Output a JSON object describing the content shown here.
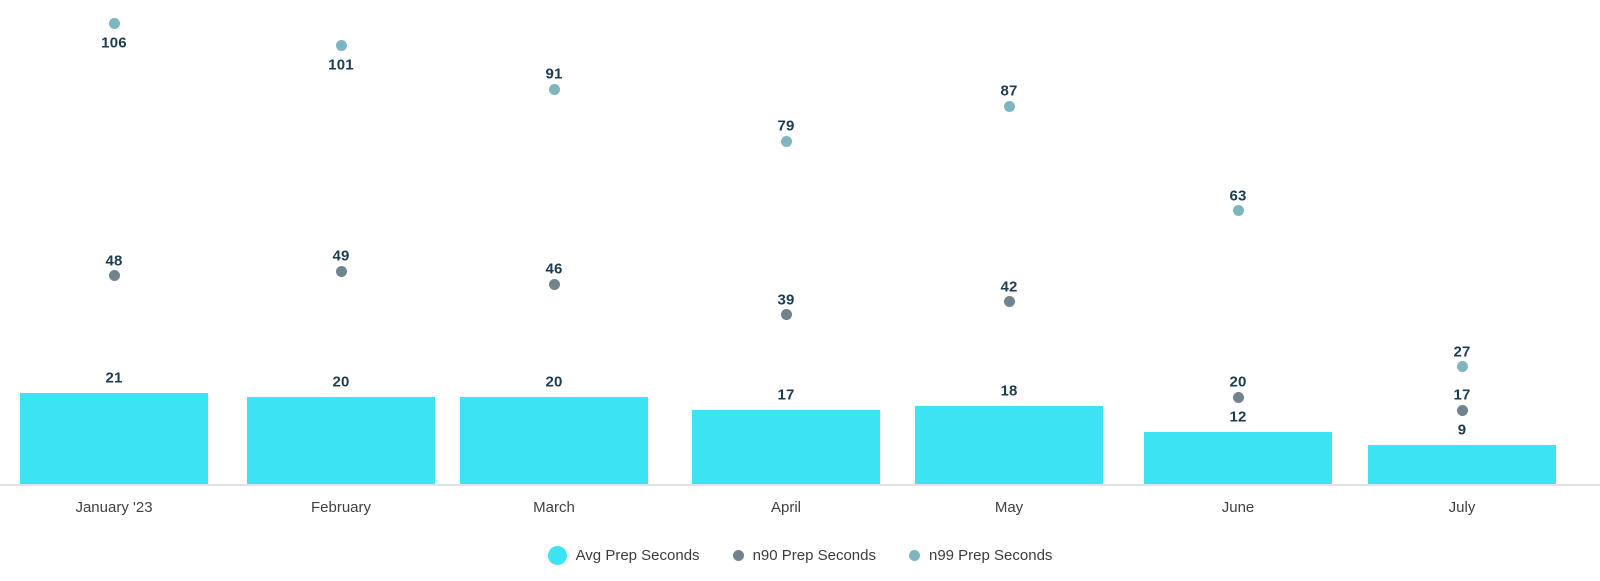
{
  "chart_data": {
    "type": "bar",
    "categories": [
      "January '23",
      "February",
      "March",
      "April",
      "May",
      "June",
      "July"
    ],
    "series": [
      {
        "name": "Avg Prep Seconds",
        "kind": "bar",
        "color": "#3CE3F3",
        "values": [
          21,
          20,
          20,
          17,
          18,
          12,
          9
        ]
      },
      {
        "name": "n90 Prep Seconds",
        "kind": "scatter",
        "color": "#70838F",
        "values": [
          48,
          49,
          46,
          39,
          42,
          20,
          17
        ]
      },
      {
        "name": "n99 Prep Seconds",
        "kind": "scatter",
        "color": "#7EB5C0",
        "values": [
          106,
          101,
          91,
          79,
          87,
          63,
          27
        ]
      }
    ],
    "title": "",
    "xlabel": "",
    "ylabel": "",
    "ylim": [
      0,
      112
    ],
    "grid": false,
    "annotations": true,
    "legend_position": "bottom-center",
    "annotation_color": "#1C3C50",
    "x_label_color": "#404040",
    "axis_line_color": "#DEE2EA",
    "background_color": "#FFFFFF"
  }
}
